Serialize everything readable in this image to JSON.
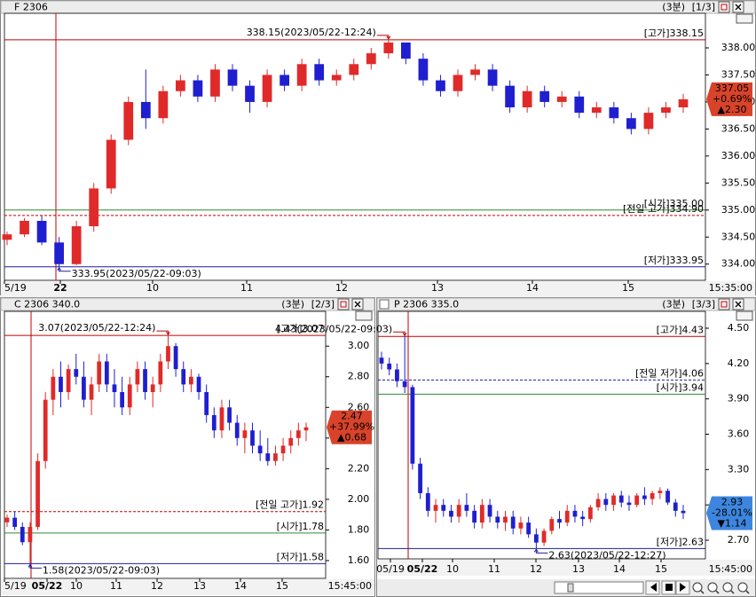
{
  "chart_data": [
    {
      "type": "candlestick",
      "title": "F 2306",
      "period": "(3분)",
      "page": "[1/3]",
      "time_label": "15:35:00",
      "categories": [
        "5/19",
        "22",
        "10",
        "11",
        "12",
        "13",
        "14",
        "15"
      ],
      "ylim": [
        333.7,
        338.64
      ],
      "yticks": [
        {
          "value": 338,
          "label": "338.00"
        },
        {
          "value": 337.5,
          "label": "337.50"
        },
        {
          "value": 337,
          "label": "337.00"
        },
        {
          "value": 336.5,
          "label": "336.50"
        },
        {
          "value": 336,
          "label": "336.00"
        },
        {
          "value": 335.5,
          "label": "335.50"
        },
        {
          "value": 335,
          "label": "335.00"
        },
        {
          "value": 334.5,
          "label": "334.50"
        },
        {
          "value": 334,
          "label": "334.00"
        }
      ],
      "up_color": "#e02a2a",
      "down_color": "#1f1fd0",
      "levels": [
        {
          "label": "[고가]338.15",
          "value": 338.15,
          "color": "#c00000",
          "style": "solid"
        },
        {
          "label": "[시가]335.00",
          "value": 335.0,
          "color": "#2e8b2e",
          "style": "solid"
        },
        {
          "label": "[전일 고가]334.90",
          "value": 334.9,
          "color": "#c00000",
          "style": "dashed"
        },
        {
          "label": "[저가]333.95",
          "value": 333.95,
          "color": "#1f1fa0",
          "style": "solid"
        }
      ],
      "annotations": [
        {
          "text": "338.15(2023/05/22-12:24)",
          "value": 338.15,
          "kind": "high"
        },
        {
          "text": "333.95(2023/05/22-09:03)",
          "value": 333.95,
          "kind": "low"
        }
      ],
      "last": {
        "price": "337.05",
        "change_pct": "+0.69%",
        "change": "▲2.30",
        "color": "#d8432b"
      },
      "ohlc": [
        [
          334.45,
          334.6,
          334.35,
          334.55
        ],
        [
          334.55,
          334.85,
          334.5,
          334.8
        ],
        [
          334.8,
          334.9,
          334.35,
          334.4
        ],
        [
          334.4,
          334.5,
          333.95,
          334.0
        ],
        [
          334.0,
          334.8,
          333.98,
          334.7
        ],
        [
          334.7,
          335.5,
          334.6,
          335.4
        ],
        [
          335.4,
          336.4,
          335.3,
          336.3
        ],
        [
          336.3,
          337.1,
          336.2,
          337.0
        ],
        [
          337.0,
          337.6,
          336.5,
          336.7
        ],
        [
          336.7,
          337.3,
          336.6,
          337.2
        ],
        [
          337.2,
          337.5,
          337.1,
          337.4
        ],
        [
          337.4,
          337.5,
          337.0,
          337.1
        ],
        [
          337.1,
          337.7,
          337.0,
          337.6
        ],
        [
          337.6,
          337.7,
          337.2,
          337.3
        ],
        [
          337.3,
          337.4,
          336.8,
          337.0
        ],
        [
          337.0,
          337.6,
          336.9,
          337.5
        ],
        [
          337.5,
          337.6,
          337.2,
          337.3
        ],
        [
          337.3,
          337.8,
          337.2,
          337.7
        ],
        [
          337.7,
          337.8,
          337.3,
          337.4
        ],
        [
          337.4,
          337.6,
          337.3,
          337.5
        ],
        [
          337.5,
          337.8,
          337.4,
          337.7
        ],
        [
          337.7,
          338.0,
          337.6,
          337.9
        ],
        [
          337.9,
          338.15,
          337.8,
          338.1
        ],
        [
          338.1,
          338.1,
          337.7,
          337.8
        ],
        [
          337.8,
          337.9,
          337.3,
          337.4
        ],
        [
          337.4,
          337.5,
          337.1,
          337.2
        ],
        [
          337.2,
          337.6,
          337.1,
          337.5
        ],
        [
          337.5,
          337.7,
          337.4,
          337.6
        ],
        [
          337.6,
          337.7,
          337.2,
          337.3
        ],
        [
          337.3,
          337.4,
          336.8,
          336.9
        ],
        [
          336.9,
          337.3,
          336.8,
          337.2
        ],
        [
          337.2,
          337.3,
          336.9,
          337.0
        ],
        [
          337.0,
          337.2,
          336.9,
          337.1
        ],
        [
          337.1,
          337.2,
          336.7,
          336.8
        ],
        [
          336.8,
          337.0,
          336.7,
          336.9
        ],
        [
          336.9,
          337.0,
          336.6,
          336.7
        ],
        [
          336.7,
          336.8,
          336.4,
          336.5
        ],
        [
          336.5,
          336.9,
          336.4,
          336.8
        ],
        [
          336.8,
          337.0,
          336.7,
          336.9
        ],
        [
          336.9,
          337.15,
          336.8,
          337.05
        ]
      ]
    },
    {
      "type": "candlestick",
      "title": "C 2306 340.0",
      "period": "(3분)",
      "page": "[2/3]",
      "time_label": "15:45:00",
      "categories": [
        "5/19",
        "05/22",
        "10",
        "11",
        "12",
        "13",
        "14",
        "15"
      ],
      "ylim": [
        1.484,
        3.227
      ],
      "yticks": [
        {
          "value": 3,
          "label": "3.00"
        },
        {
          "value": 2.8,
          "label": "2.80"
        },
        {
          "value": 2.6,
          "label": "2.60"
        },
        {
          "value": 2.4,
          "label": "2.40"
        },
        {
          "value": 2.2,
          "label": "2.20"
        },
        {
          "value": 2,
          "label": "2.00"
        },
        {
          "value": 1.8,
          "label": "1.80"
        },
        {
          "value": 1.6,
          "label": "1.60"
        }
      ],
      "up_color": "#e02a2a",
      "down_color": "#1f1fd0",
      "levels": [
        {
          "label": "[고가]3.07",
          "value": 3.07,
          "color": "#c00000",
          "style": "solid"
        },
        {
          "label": "[전일 고가]1.92",
          "value": 1.92,
          "color": "#c00000",
          "style": "dashed"
        },
        {
          "label": "[시가]1.78",
          "value": 1.78,
          "color": "#2e8b2e",
          "style": "solid"
        },
        {
          "label": "[저가]1.58",
          "value": 1.58,
          "color": "#1f1fa0",
          "style": "solid"
        }
      ],
      "annotations": [
        {
          "text": "3.07(2023/05/22-12:24)",
          "value": 3.07,
          "kind": "high"
        },
        {
          "text": "1.58(2023/05/22-09:03)",
          "value": 1.58,
          "kind": "low"
        }
      ],
      "last": {
        "price": "2.47",
        "change_pct": "+37.99%",
        "change": "▲0.68",
        "color": "#d8432b"
      },
      "ohlc": [
        [
          1.85,
          1.9,
          1.82,
          1.88
        ],
        [
          1.88,
          1.92,
          1.8,
          1.82
        ],
        [
          1.82,
          1.85,
          1.7,
          1.72
        ],
        [
          1.72,
          1.85,
          1.58,
          1.82
        ],
        [
          1.82,
          2.3,
          1.8,
          2.25
        ],
        [
          2.25,
          2.7,
          2.2,
          2.65
        ],
        [
          2.65,
          2.85,
          2.55,
          2.8
        ],
        [
          2.8,
          2.9,
          2.6,
          2.7
        ],
        [
          2.7,
          2.88,
          2.65,
          2.85
        ],
        [
          2.85,
          2.95,
          2.75,
          2.8
        ],
        [
          2.8,
          2.9,
          2.6,
          2.65
        ],
        [
          2.65,
          2.8,
          2.55,
          2.75
        ],
        [
          2.75,
          2.95,
          2.7,
          2.9
        ],
        [
          2.9,
          2.95,
          2.7,
          2.75
        ],
        [
          2.75,
          2.85,
          2.6,
          2.7
        ],
        [
          2.7,
          2.8,
          2.55,
          2.6
        ],
        [
          2.6,
          2.8,
          2.55,
          2.75
        ],
        [
          2.75,
          2.9,
          2.7,
          2.85
        ],
        [
          2.85,
          2.9,
          2.65,
          2.7
        ],
        [
          2.7,
          2.8,
          2.6,
          2.75
        ],
        [
          2.75,
          2.95,
          2.7,
          2.9
        ],
        [
          2.9,
          3.07,
          2.85,
          3.0
        ],
        [
          3.0,
          3.02,
          2.8,
          2.85
        ],
        [
          2.85,
          2.9,
          2.7,
          2.75
        ],
        [
          2.75,
          2.85,
          2.7,
          2.8
        ],
        [
          2.8,
          2.82,
          2.65,
          2.7
        ],
        [
          2.7,
          2.75,
          2.5,
          2.55
        ],
        [
          2.55,
          2.6,
          2.4,
          2.45
        ],
        [
          2.45,
          2.65,
          2.4,
          2.6
        ],
        [
          2.6,
          2.65,
          2.45,
          2.5
        ],
        [
          2.5,
          2.55,
          2.35,
          2.4
        ],
        [
          2.4,
          2.5,
          2.3,
          2.45
        ],
        [
          2.45,
          2.5,
          2.3,
          2.35
        ],
        [
          2.35,
          2.45,
          2.25,
          2.3
        ],
        [
          2.3,
          2.4,
          2.22,
          2.25
        ],
        [
          2.25,
          2.35,
          2.22,
          2.3
        ],
        [
          2.3,
          2.4,
          2.25,
          2.35
        ],
        [
          2.35,
          2.45,
          2.3,
          2.4
        ],
        [
          2.4,
          2.5,
          2.35,
          2.45
        ],
        [
          2.45,
          2.5,
          2.38,
          2.47
        ]
      ]
    },
    {
      "type": "candlestick",
      "title": "P 2306 335.0",
      "period": "(3분)",
      "page": "[3/3]",
      "time_label": "15:45:00",
      "categories": [
        "05/19",
        "05/22",
        "10",
        "11",
        "12",
        "13",
        "14",
        "15"
      ],
      "ylim": [
        2.542,
        4.643
      ],
      "yticks": [
        {
          "value": 4.5,
          "label": "4.50"
        },
        {
          "value": 4.2,
          "label": "4.20"
        },
        {
          "value": 3.9,
          "label": "3.90"
        },
        {
          "value": 3.6,
          "label": "3.60"
        },
        {
          "value": 3.3,
          "label": "3.30"
        },
        {
          "value": 3,
          "label": "3.00"
        },
        {
          "value": 2.7,
          "label": "2.70"
        }
      ],
      "up_color": "#e02a2a",
      "down_color": "#1f1fd0",
      "levels": [
        {
          "label": "[고가]4.43",
          "value": 4.43,
          "color": "#c00000",
          "style": "solid"
        },
        {
          "label": "[전일 저가]4.06",
          "value": 4.06,
          "color": "#1f1fa0",
          "style": "dashed"
        },
        {
          "label": "[시가]3.94",
          "value": 3.94,
          "color": "#2e8b2e",
          "style": "solid"
        },
        {
          "label": "[저가]2.63",
          "value": 2.63,
          "color": "#1f1fa0",
          "style": "solid"
        }
      ],
      "annotations": [
        {
          "text": "4.43(2023/05/22-09:03)",
          "value": 4.43,
          "kind": "high"
        },
        {
          "text": "2.63(2023/05/22-12:27)",
          "value": 2.63,
          "kind": "low"
        }
      ],
      "last": {
        "price": "2.93",
        "change_pct": "-28.01%",
        "change": "▼1.14",
        "color": "#3d86e0"
      },
      "ohlc": [
        [
          4.25,
          4.3,
          4.15,
          4.2
        ],
        [
          4.2,
          4.25,
          4.1,
          4.15
        ],
        [
          4.15,
          4.2,
          4.0,
          4.05
        ],
        [
          4.05,
          4.43,
          3.95,
          4.0
        ],
        [
          4.0,
          4.02,
          3.3,
          3.35
        ],
        [
          3.35,
          3.4,
          3.05,
          3.1
        ],
        [
          3.1,
          3.15,
          2.9,
          2.95
        ],
        [
          2.95,
          3.05,
          2.85,
          3.0
        ],
        [
          3.0,
          3.05,
          2.9,
          2.95
        ],
        [
          2.95,
          3.0,
          2.85,
          2.9
        ],
        [
          2.9,
          3.05,
          2.85,
          3.0
        ],
        [
          3.0,
          3.1,
          2.9,
          2.95
        ],
        [
          2.95,
          3.0,
          2.8,
          2.85
        ],
        [
          2.85,
          3.05,
          2.8,
          3.0
        ],
        [
          3.0,
          3.05,
          2.85,
          2.9
        ],
        [
          2.9,
          2.95,
          2.8,
          2.85
        ],
        [
          2.85,
          2.95,
          2.78,
          2.9
        ],
        [
          2.9,
          2.95,
          2.75,
          2.8
        ],
        [
          2.8,
          2.9,
          2.75,
          2.85
        ],
        [
          2.85,
          2.9,
          2.72,
          2.75
        ],
        [
          2.75,
          2.8,
          2.63,
          2.68
        ],
        [
          2.68,
          2.8,
          2.65,
          2.78
        ],
        [
          2.78,
          2.9,
          2.75,
          2.88
        ],
        [
          2.88,
          2.95,
          2.8,
          2.85
        ],
        [
          2.85,
          3.0,
          2.82,
          2.95
        ],
        [
          2.95,
          3.0,
          2.85,
          2.9
        ],
        [
          2.9,
          2.95,
          2.82,
          2.88
        ],
        [
          2.88,
          3.0,
          2.85,
          2.98
        ],
        [
          2.98,
          3.1,
          2.95,
          3.05
        ],
        [
          3.05,
          3.1,
          2.95,
          3.0
        ],
        [
          3.0,
          3.1,
          2.95,
          3.08
        ],
        [
          3.08,
          3.12,
          2.98,
          3.02
        ],
        [
          3.02,
          3.08,
          2.95,
          3.0
        ],
        [
          3.0,
          3.1,
          2.98,
          3.08
        ],
        [
          3.08,
          3.15,
          3.0,
          3.05
        ],
        [
          3.05,
          3.12,
          3.0,
          3.1
        ],
        [
          3.1,
          3.15,
          3.05,
          3.12
        ],
        [
          3.12,
          3.14,
          3.0,
          3.02
        ],
        [
          3.02,
          3.05,
          2.9,
          2.95
        ],
        [
          2.95,
          3.0,
          2.88,
          2.93
        ]
      ]
    }
  ]
}
